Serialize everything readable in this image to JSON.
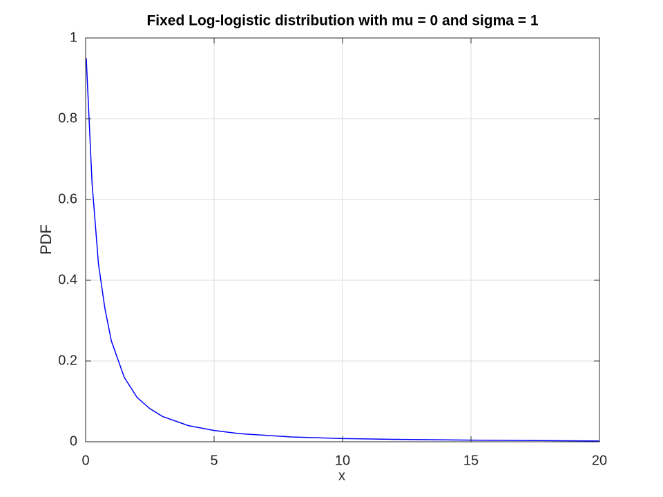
{
  "chart_data": {
    "type": "line",
    "title": "Fixed Log-logistic distribution with mu = 0 and sigma = 1",
    "xlabel": "x",
    "ylabel": "PDF",
    "x": [
      0.025,
      0.25,
      0.5,
      0.75,
      1,
      1.5,
      2,
      2.5,
      3,
      4,
      5,
      6,
      8,
      10,
      12,
      15,
      20
    ],
    "series": [
      {
        "color": "#0000ff",
        "values": [
          0.95,
          0.64,
          0.44,
          0.33,
          0.25,
          0.16,
          0.11,
          0.082,
          0.0625,
          0.04,
          0.028,
          0.02,
          0.012,
          0.008,
          0.006,
          0.004,
          0.002
        ]
      }
    ],
    "xlim": [
      0,
      20
    ],
    "xticks": [
      0,
      5,
      10,
      15,
      20
    ],
    "ylim": [
      0,
      1
    ],
    "yticks": [
      0,
      0.2,
      0.4,
      0.6,
      0.8,
      1
    ],
    "grid": true
  }
}
